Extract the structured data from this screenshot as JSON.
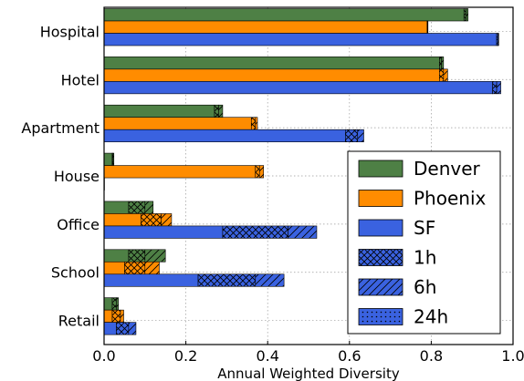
{
  "chart_data": {
    "type": "bar",
    "orientation": "horizontal",
    "stacked": true,
    "title": "",
    "xlabel": "Annual Weighted Diversity",
    "ylabel": "",
    "xlim": [
      0,
      1
    ],
    "xticks": [
      "0.0",
      "0.2",
      "0.4",
      "0.6",
      "0.8",
      "1.0"
    ],
    "grid": true,
    "legend_position": "right",
    "categories": [
      "Hospital",
      "Hotel",
      "Apartment",
      "House",
      "Office",
      "School",
      "Retail"
    ],
    "series": [
      {
        "name": "Denver",
        "color": "#4e8045",
        "segments_1h": [
          0.88,
          0.82,
          0.27,
          0.02,
          0.06,
          0.06,
          0.02
        ],
        "segments_6h": [
          0.005,
          0.005,
          0.01,
          0.002,
          0.04,
          0.04,
          0.01
        ],
        "segments_24h": [
          0.005,
          0.005,
          0.01,
          0.002,
          0.02,
          0.05,
          0.005
        ]
      },
      {
        "name": "Phoenix",
        "color": "#ff8c00",
        "segments_1h": [
          0.79,
          0.82,
          0.36,
          0.37,
          0.09,
          0.05,
          0.02
        ],
        "segments_6h": [
          0.001,
          0.01,
          0.01,
          0.01,
          0.05,
          0.05,
          0.02
        ],
        "segments_24h": [
          0.001,
          0.01,
          0.005,
          0.01,
          0.025,
          0.035,
          0.008
        ]
      },
      {
        "name": "SF",
        "color": "#3a62e0",
        "segments_1h": [
          0.96,
          0.95,
          0.59,
          0.001,
          0.29,
          0.23,
          0.03
        ],
        "segments_6h": [
          0.003,
          0.01,
          0.03,
          0.0,
          0.16,
          0.14,
          0.03
        ],
        "segments_24h": [
          0.002,
          0.01,
          0.015,
          0.0,
          0.07,
          0.07,
          0.018
        ]
      }
    ],
    "legend": [
      "Denver",
      "Phoenix",
      "SF",
      "1h",
      "6h",
      "24h"
    ]
  }
}
